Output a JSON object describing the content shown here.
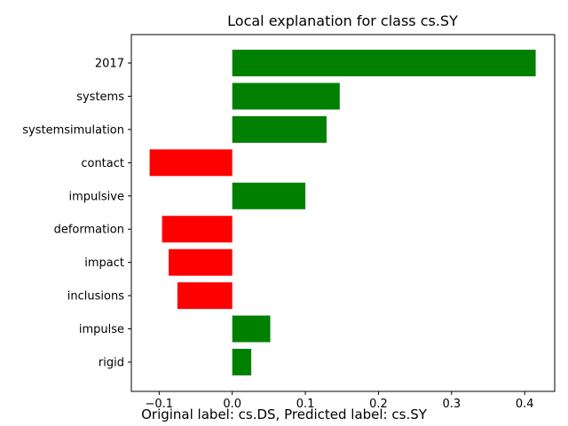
{
  "chart_data": {
    "type": "bar",
    "orientation": "horizontal",
    "title": "Local explanation for class cs.SY",
    "xlabel": "",
    "ylabel": "",
    "categories": [
      "2017",
      "systems",
      "systemsimulation",
      "contact",
      "impulsive",
      "deformation",
      "impact",
      "inclusions",
      "impulse",
      "rigid"
    ],
    "values": [
      0.415,
      0.147,
      0.129,
      -0.113,
      0.1,
      -0.096,
      -0.087,
      -0.075,
      0.052,
      0.026
    ],
    "xlim": [
      -0.138,
      0.441
    ],
    "xticks": [
      -0.1,
      0.0,
      0.1,
      0.2,
      0.3,
      0.4
    ],
    "xtick_labels": [
      "−0.1",
      "0.0",
      "0.1",
      "0.2",
      "0.3",
      "0.4"
    ],
    "grid": false,
    "colors": {
      "positive": "#008000",
      "negative": "#ff0000"
    }
  },
  "footer": {
    "text": "Original label: cs.DS, Predicted label: cs.SY"
  }
}
